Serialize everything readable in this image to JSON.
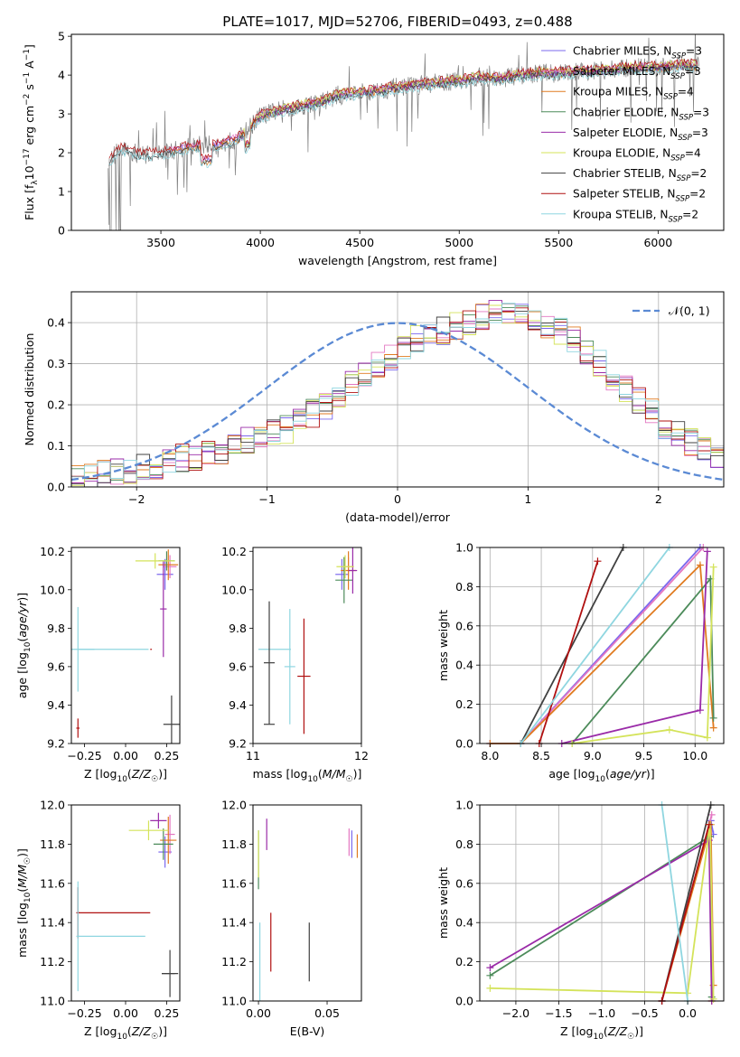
{
  "figure": {
    "title": "PLATE=1017, MJD=52706, FIBERID=0493, z=0.488"
  },
  "colors": {
    "chabrier_miles": "#7b68ee",
    "salpeter_miles": "#e377c2",
    "kroupa_miles": "#e07b20",
    "chabrier_elodie": "#4c8b5a",
    "salpeter_elodie": "#9a2ba8",
    "kroupa_elodie": "#d4e35a",
    "chabrier_stelib": "#404040",
    "salpeter_stelib": "#b01010",
    "kroupa_stelib": "#8fd6e0",
    "data": "#808080",
    "normal": "#5b8ad4"
  },
  "chart_data": [
    {
      "id": "spectrum",
      "type": "line",
      "title": "PLATE=1017, MJD=52706, FIBERID=0493, z=0.488",
      "xlabel": "wavelength [Angstrom, rest frame]",
      "ylabel": "Flux [f_λ 10^-17 erg cm^-2 s^-1 A^-1]",
      "xlim": [
        3050,
        6330
      ],
      "ylim": [
        0,
        5.05
      ],
      "xticks": [
        3500,
        4000,
        4500,
        5000,
        5500,
        6000
      ],
      "yticks": [
        0,
        1,
        2,
        3,
        4,
        5
      ],
      "legend_position": "upper-right",
      "legend": [
        {
          "key": "chabrier_miles",
          "label": "Chabrier MILES, N_SSP=3"
        },
        {
          "key": "salpeter_miles",
          "label": "Salpeter MILES, N_SSP=3"
        },
        {
          "key": "kroupa_miles",
          "label": "Kroupa MILES, N_SSP=4"
        },
        {
          "key": "chabrier_elodie",
          "label": "Chabrier ELODIE, N_SSP=3"
        },
        {
          "key": "salpeter_elodie",
          "label": "Salpeter ELODIE, N_SSP=3"
        },
        {
          "key": "kroupa_elodie",
          "label": "Kroupa ELODIE, N_SSP=4"
        },
        {
          "key": "chabrier_stelib",
          "label": "Chabrier STELIB, N_SSP=2"
        },
        {
          "key": "salpeter_stelib",
          "label": "Salpeter STELIB, N_SSP=2"
        },
        {
          "key": "kroupa_stelib",
          "label": "Kroupa STELIB, N_SSP=2"
        }
      ],
      "continuum_shape": {
        "x": [
          3240,
          3300,
          3400,
          3500,
          3600,
          3700,
          3800,
          3900,
          4000,
          4100,
          4200,
          4300,
          4400,
          4500,
          4600,
          4700,
          4800,
          4900,
          5000,
          5100,
          5200,
          5300,
          5400,
          5500,
          5600,
          5700,
          5800,
          5900,
          6000,
          6100,
          6200
        ],
        "y": [
          1.8,
          2.1,
          1.95,
          2.0,
          2.1,
          2.2,
          2.2,
          2.4,
          2.95,
          3.1,
          3.2,
          3.3,
          3.5,
          3.55,
          3.6,
          3.7,
          3.75,
          3.8,
          3.85,
          3.95,
          3.9,
          4.0,
          4.05,
          4.05,
          4.1,
          4.1,
          4.15,
          4.2,
          4.2,
          4.25,
          4.25
        ]
      },
      "model_coverage": {
        "chabrier_miles": [
          3540,
          6200
        ],
        "salpeter_miles": [
          3540,
          6200
        ],
        "kroupa_miles": [
          3540,
          6200
        ],
        "chabrier_elodie": [
          3900,
          6200
        ],
        "salpeter_elodie": [
          3900,
          6200
        ],
        "kroupa_elodie": [
          3900,
          6200
        ],
        "chabrier_stelib": [
          3240,
          6200
        ],
        "salpeter_stelib": [
          3240,
          6200
        ],
        "kroupa_stelib": [
          3240,
          6200
        ]
      }
    },
    {
      "id": "residuals",
      "type": "histogram",
      "xlabel": "(data-model)/error",
      "ylabel": "Normed distribution",
      "xlim": [
        -2.5,
        2.5
      ],
      "ylim": [
        0,
        0.475
      ],
      "xticks": [
        -2,
        -1,
        0,
        1,
        2
      ],
      "yticks": [
        0.0,
        0.1,
        0.2,
        0.3,
        0.4
      ],
      "grid": true,
      "legend_position": "upper-right",
      "normal_label": "𝒩(0, 1)",
      "bin_width": 0.1,
      "bin_start": -2.5,
      "envelope": [
        0.02,
        0.025,
        0.03,
        0.035,
        0.04,
        0.045,
        0.05,
        0.06,
        0.07,
        0.075,
        0.08,
        0.09,
        0.1,
        0.11,
        0.12,
        0.13,
        0.14,
        0.16,
        0.18,
        0.2,
        0.22,
        0.25,
        0.28,
        0.3,
        0.32,
        0.34,
        0.36,
        0.37,
        0.38,
        0.39,
        0.4,
        0.41,
        0.42,
        0.42,
        0.41,
        0.4,
        0.39,
        0.38,
        0.36,
        0.33,
        0.3,
        0.27,
        0.24,
        0.21,
        0.18,
        0.15,
        0.13,
        0.11,
        0.09,
        0.07
      ],
      "series_keys": [
        "chabrier_miles",
        "salpeter_miles",
        "kroupa_miles",
        "chabrier_elodie",
        "salpeter_elodie",
        "kroupa_elodie",
        "chabrier_stelib",
        "salpeter_stelib",
        "kroupa_stelib"
      ]
    },
    {
      "id": "age_vs_Z",
      "type": "errorbar",
      "xlabel": "Z [log10(Z/Z☉)]",
      "ylabel": "age [log10(age/yr)]",
      "xlim": [
        -0.33,
        0.33
      ],
      "ylim": [
        9.2,
        10.22
      ],
      "xticks": [
        -0.25,
        0.0,
        0.25
      ],
      "xtick_labels": [
        "−0.25",
        "0.00",
        "0.25"
      ],
      "yticks": [
        9.2,
        9.4,
        9.6,
        9.8,
        10.0,
        10.2
      ],
      "points": [
        {
          "key": "chabrier_miles",
          "x": 0.24,
          "xerr": 0.05,
          "y": 10.08,
          "yerr": 0.08
        },
        {
          "key": "salpeter_miles",
          "x": 0.27,
          "xerr": 0.04,
          "y": 10.12,
          "yerr": 0.06
        },
        {
          "key": "kroupa_miles",
          "x": 0.26,
          "xerr": 0.06,
          "y": 10.13,
          "yerr": 0.08
        },
        {
          "key": "chabrier_elodie",
          "x": 0.25,
          "xerr": 0.05,
          "y": 10.15,
          "yerr": 0.05
        },
        {
          "key": "salpeter_elodie",
          "x": 0.23,
          "xerr": 0.02,
          "y": 9.9,
          "yerr": 0.25
        },
        {
          "key": "kroupa_elodie",
          "x": 0.18,
          "xerr": 0.12,
          "y": 10.15,
          "yerr": 0.04
        },
        {
          "key": "chabrier_stelib",
          "x": 0.28,
          "xerr": 0.05,
          "y": 9.3,
          "yerr": 0.15
        },
        {
          "key": "salpeter_stelib",
          "x": -0.29,
          "xerr": 0.01,
          "y": 9.28,
          "yerr": 0.05
        },
        {
          "key": "kroupa_stelib",
          "x": -0.29,
          "xerr": 0.1,
          "y": 9.69,
          "yerr": 0.22
        }
      ],
      "extra_segments": [
        {
          "key": "salpeter_stelib",
          "x1": 0.15,
          "x2": 0.16,
          "y": 9.69
        },
        {
          "key": "kroupa_stelib",
          "x1": -0.29,
          "x2": 0.14,
          "y": 9.69
        }
      ]
    },
    {
      "id": "age_vs_mass",
      "type": "errorbar",
      "xlabel": "mass [log10(M/M☉)]",
      "ylabel": "",
      "xlim": [
        11.0,
        12.0
      ],
      "ylim": [
        9.2,
        10.22
      ],
      "xticks": [
        11,
        12
      ],
      "xtick_labels": [
        "11",
        "12"
      ],
      "yticks": [
        9.2,
        9.4,
        9.6,
        9.8,
        10.0,
        10.2
      ],
      "points": [
        {
          "key": "chabrier_miles",
          "x": 11.82,
          "xerr": 0.06,
          "y": 10.08,
          "yerr": 0.08
        },
        {
          "key": "salpeter_miles",
          "x": 11.88,
          "xerr": 0.05,
          "y": 10.12,
          "yerr": 0.05
        },
        {
          "key": "kroupa_miles",
          "x": 11.88,
          "xerr": 0.07,
          "y": 10.1,
          "yerr": 0.1
        },
        {
          "key": "chabrier_elodie",
          "x": 11.84,
          "xerr": 0.08,
          "y": 10.05,
          "yerr": 0.12
        },
        {
          "key": "salpeter_elodie",
          "x": 11.92,
          "xerr": 0.04,
          "y": 10.1,
          "yerr": 0.12
        },
        {
          "key": "kroupa_elodie",
          "x": 11.85,
          "xerr": 0.08,
          "y": 10.12,
          "yerr": 0.06
        },
        {
          "key": "chabrier_stelib",
          "x": 11.15,
          "xerr": 0.05,
          "y": 9.62,
          "yerr": 0.32
        },
        {
          "key": "salpeter_stelib",
          "x": 11.47,
          "xerr": 0.06,
          "y": 9.55,
          "yerr": 0.3
        },
        {
          "key": "kroupa_stelib",
          "x": 11.34,
          "xerr": 0.05,
          "y": 9.6,
          "yerr": 0.3
        }
      ],
      "extra_segments": [
        {
          "key": "chabrier_stelib",
          "x1": 11.1,
          "x2": 11.2,
          "y": 9.3
        },
        {
          "key": "kroupa_stelib",
          "x1": 11.05,
          "x2": 11.35,
          "y": 9.69
        }
      ]
    },
    {
      "id": "mass_weight_vs_age",
      "type": "line",
      "xlabel": "age [log10(age/yr)]",
      "ylabel": "mass weight",
      "xlim": [
        7.9,
        10.28
      ],
      "ylim": [
        0,
        1.0
      ],
      "xticks": [
        8.0,
        8.5,
        9.0,
        9.5,
        10.0
      ],
      "yticks": [
        0.0,
        0.2,
        0.4,
        0.6,
        0.8,
        1.0
      ],
      "grid": true,
      "series": [
        {
          "key": "chabrier_miles",
          "x": [
            8.0,
            8.3,
            10.05
          ],
          "y": [
            0.0,
            0.0,
            1.0
          ]
        },
        {
          "key": "salpeter_miles",
          "x": [
            8.3,
            10.08
          ],
          "y": [
            0.0,
            1.0
          ]
        },
        {
          "key": "kroupa_miles",
          "x": [
            8.0,
            8.3,
            10.05,
            10.18
          ],
          "y": [
            0.0,
            0.0,
            0.91,
            0.08
          ]
        },
        {
          "key": "chabrier_elodie",
          "x": [
            8.8,
            10.15,
            10.18
          ],
          "y": [
            0.0,
            0.84,
            0.13
          ]
        },
        {
          "key": "salpeter_elodie",
          "x": [
            8.7,
            10.05,
            10.12
          ],
          "y": [
            0.0,
            0.17,
            0.98
          ]
        },
        {
          "key": "kroupa_elodie",
          "x": [
            8.8,
            9.75,
            10.12,
            10.18
          ],
          "y": [
            0.0,
            0.07,
            0.03,
            0.9
          ]
        },
        {
          "key": "chabrier_stelib",
          "x": [
            8.3,
            9.3
          ],
          "y": [
            0.0,
            1.0
          ]
        },
        {
          "key": "salpeter_stelib",
          "x": [
            8.48,
            9.05
          ],
          "y": [
            0.0,
            0.93
          ]
        },
        {
          "key": "kroupa_stelib",
          "x": [
            8.3,
            9.75
          ],
          "y": [
            0.0,
            1.0
          ]
        }
      ]
    },
    {
      "id": "mass_vs_Z",
      "type": "errorbar",
      "xlabel": "Z [log10(Z/Z☉)]",
      "ylabel": "mass [log10(M/M☉)]",
      "xlim": [
        -0.33,
        0.33
      ],
      "ylim": [
        11.0,
        12.0
      ],
      "xticks": [
        -0.25,
        0.0,
        0.25
      ],
      "xtick_labels": [
        "−0.25",
        "0.00",
        "0.25"
      ],
      "yticks": [
        11.0,
        11.2,
        11.4,
        11.6,
        11.8,
        12.0
      ],
      "points": [
        {
          "key": "chabrier_miles",
          "x": 0.24,
          "xerr": 0.04,
          "y": 11.76,
          "yerr": 0.08
        },
        {
          "key": "salpeter_miles",
          "x": 0.27,
          "xerr": 0.03,
          "y": 11.85,
          "yerr": 0.1
        },
        {
          "key": "kroupa_miles",
          "x": 0.26,
          "xerr": 0.05,
          "y": 11.82,
          "yerr": 0.12
        },
        {
          "key": "chabrier_elodie",
          "x": 0.23,
          "xerr": 0.06,
          "y": 11.8,
          "yerr": 0.08
        },
        {
          "key": "salpeter_elodie",
          "x": 0.2,
          "xerr": 0.05,
          "y": 11.92,
          "yerr": 0.04
        },
        {
          "key": "kroupa_elodie",
          "x": 0.14,
          "xerr": 0.12,
          "y": 11.87,
          "yerr": 0.05
        },
        {
          "key": "chabrier_stelib",
          "x": 0.27,
          "xerr": 0.05,
          "y": 11.14,
          "yerr": 0.12
        },
        {
          "key": "salpeter_stelib",
          "x": -0.29,
          "xerr": 0.01,
          "y": 11.45,
          "yerr": 0.13
        },
        {
          "key": "kroupa_stelib",
          "x": -0.29,
          "xerr": 0.01,
          "y": 11.33,
          "yerr": 0.28
        }
      ],
      "extra_segments": [
        {
          "key": "salpeter_stelib",
          "x1": -0.29,
          "x2": 0.15,
          "y": 11.45
        },
        {
          "key": "kroupa_stelib",
          "x1": -0.29,
          "x2": 0.12,
          "y": 11.33
        },
        {
          "key": "chabrier_stelib",
          "x1": 0.22,
          "x2": 0.3,
          "y": 11.14
        }
      ]
    },
    {
      "id": "mass_vs_ebv",
      "type": "errorbar",
      "xlabel": "E(B-V)",
      "ylabel": "",
      "xlim": [
        -0.004,
        0.075
      ],
      "ylim": [
        11.0,
        12.0
      ],
      "xticks": [
        0.0,
        0.05
      ],
      "xtick_labels": [
        "0.00",
        "0.05"
      ],
      "yticks": [
        11.0,
        11.2,
        11.4,
        11.6,
        11.8,
        12.0
      ],
      "points": [
        {
          "key": "chabrier_miles",
          "x": 0.068,
          "xerr": 0.0,
          "y": 11.8,
          "yerr": 0.07
        },
        {
          "key": "salpeter_miles",
          "x": 0.066,
          "xerr": 0.0,
          "y": 11.81,
          "yerr": 0.07
        },
        {
          "key": "kroupa_miles",
          "x": 0.072,
          "xerr": 0.0,
          "y": 11.79,
          "yerr": 0.06
        },
        {
          "key": "chabrier_elodie",
          "x": 0.0,
          "xerr": 0.0,
          "y": 11.72,
          "yerr": 0.15
        },
        {
          "key": "salpeter_elodie",
          "x": 0.006,
          "xerr": 0.0,
          "y": 11.85,
          "yerr": 0.08
        },
        {
          "key": "kroupa_elodie",
          "x": 0.0,
          "xerr": 0.0,
          "y": 11.75,
          "yerr": 0.12
        },
        {
          "key": "chabrier_stelib",
          "x": 0.037,
          "xerr": 0.0,
          "y": 11.25,
          "yerr": 0.15
        },
        {
          "key": "salpeter_stelib",
          "x": 0.009,
          "xerr": 0.0,
          "y": 11.3,
          "yerr": 0.15
        },
        {
          "key": "kroupa_stelib",
          "x": 0.001,
          "xerr": 0.0,
          "y": 11.15,
          "yerr": 0.25
        }
      ],
      "extra_segments": []
    },
    {
      "id": "mass_weight_vs_Z",
      "type": "line",
      "xlabel": "Z [log10(Z/Z☉)]",
      "ylabel": "mass weight",
      "xlim": [
        -2.42,
        0.42
      ],
      "ylim": [
        0,
        1.0
      ],
      "xticks": [
        -2.0,
        -1.5,
        -1.0,
        -0.5,
        0.0
      ],
      "xtick_labels": [
        "−2.0",
        "−1.5",
        "−1.0",
        "−0.5",
        "0.0"
      ],
      "yticks": [
        0.0,
        0.2,
        0.4,
        0.6,
        0.8,
        1.0
      ],
      "grid": true,
      "series": [
        {
          "key": "chabrier_miles",
          "x": [
            -0.3,
            0.27,
            0.3
          ],
          "y": [
            0.0,
            0.92,
            0.85
          ]
        },
        {
          "key": "salpeter_miles",
          "x": [
            -0.3,
            0.28
          ],
          "y": [
            0.0,
            0.95
          ]
        },
        {
          "key": "kroupa_miles",
          "x": [
            -0.3,
            0.27,
            0.3,
            0.28
          ],
          "y": [
            0.0,
            0.9,
            0.08,
            0.0
          ]
        },
        {
          "key": "chabrier_elodie",
          "x": [
            -2.3,
            0.26,
            0.28
          ],
          "y": [
            0.13,
            0.84,
            0.02
          ]
        },
        {
          "key": "salpeter_elodie",
          "x": [
            -2.3,
            0.25,
            0.28
          ],
          "y": [
            0.17,
            0.82,
            0.0
          ]
        },
        {
          "key": "kroupa_elodie",
          "x": [
            -2.3,
            0.0,
            0.26,
            0.3
          ],
          "y": [
            0.065,
            0.04,
            0.9,
            0.01
          ]
        },
        {
          "key": "chabrier_stelib",
          "x": [
            -0.3,
            0.27
          ],
          "y": [
            0.0,
            1.0
          ]
        },
        {
          "key": "salpeter_stelib",
          "x": [
            -0.3,
            0.25
          ],
          "y": [
            0.0,
            0.9
          ]
        },
        {
          "key": "kroupa_stelib",
          "x": [
            -0.3,
            0.0
          ],
          "y": [
            1.0,
            0.0
          ]
        }
      ]
    }
  ]
}
